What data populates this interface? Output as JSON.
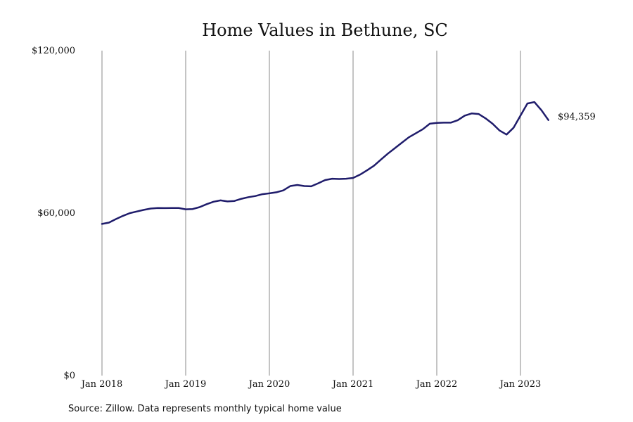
{
  "chart_data": {
    "type": "line",
    "title": "Home Values in Bethune, SC",
    "xlabel": "",
    "ylabel": "",
    "ylim": [
      0,
      120000
    ],
    "y_ticks": [
      {
        "value": 0,
        "label": "$0"
      },
      {
        "value": 60000,
        "label": "$60,000"
      },
      {
        "value": 120000,
        "label": "$120,000"
      }
    ],
    "x_ticks": [
      "Jan 2018",
      "Jan 2019",
      "Jan 2020",
      "Jan 2021",
      "Jan 2022",
      "Jan 2023"
    ],
    "xlim": [
      "2018-01",
      "2023-05"
    ],
    "grid": "vertical",
    "line_color": "#1f1c6b",
    "series": [
      {
        "name": "",
        "x": [
          "2018-01",
          "2018-02",
          "2018-03",
          "2018-04",
          "2018-05",
          "2018-06",
          "2018-07",
          "2018-08",
          "2018-09",
          "2018-10",
          "2018-11",
          "2018-12",
          "2019-01",
          "2019-02",
          "2019-03",
          "2019-04",
          "2019-05",
          "2019-06",
          "2019-07",
          "2019-08",
          "2019-09",
          "2019-10",
          "2019-11",
          "2019-12",
          "2020-01",
          "2020-02",
          "2020-03",
          "2020-04",
          "2020-05",
          "2020-06",
          "2020-07",
          "2020-08",
          "2020-09",
          "2020-10",
          "2020-11",
          "2020-12",
          "2021-01",
          "2021-02",
          "2021-03",
          "2021-04",
          "2021-05",
          "2021-06",
          "2021-07",
          "2021-08",
          "2021-09",
          "2021-10",
          "2021-11",
          "2021-12",
          "2022-01",
          "2022-02",
          "2022-03",
          "2022-04",
          "2022-05",
          "2022-06",
          "2022-07",
          "2022-08",
          "2022-09",
          "2022-10",
          "2022-11",
          "2022-12",
          "2023-01",
          "2023-02",
          "2023-03",
          "2023-04",
          "2023-05"
        ],
        "values": [
          56000,
          56500,
          57800,
          59000,
          60000,
          60600,
          61200,
          61700,
          61900,
          61850,
          61900,
          61900,
          61400,
          61500,
          62200,
          63300,
          64200,
          64700,
          64300,
          64500,
          65300,
          65900,
          66300,
          67000,
          67300,
          67700,
          68400,
          70000,
          70400,
          70000,
          69900,
          71000,
          72200,
          72700,
          72600,
          72700,
          73000,
          74200,
          75800,
          77500,
          79800,
          82000,
          84000,
          86000,
          88000,
          89500,
          91000,
          93000,
          93300,
          93400,
          93400,
          94300,
          96000,
          96800,
          96600,
          95000,
          93000,
          90500,
          89000,
          91500,
          96000,
          100500,
          101000,
          98000,
          94359
        ]
      }
    ],
    "annotations": [
      {
        "text": "$94,359"
      }
    ],
    "source": "Source: Zillow. Data represents monthly typical home value"
  }
}
